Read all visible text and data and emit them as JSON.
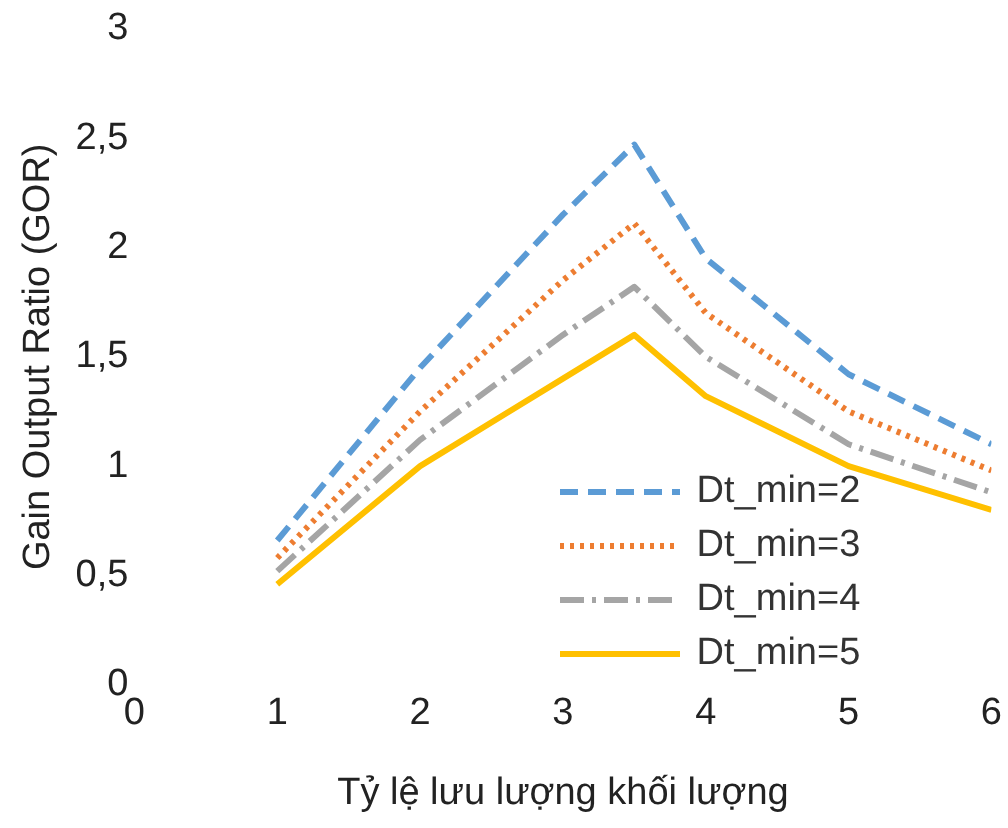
{
  "chart_data": {
    "type": "line",
    "xlabel": "Tỷ lệ lưu lượng khối lượng",
    "ylabel": "Gain Output Ratio (GOR)",
    "x": [
      1,
      2,
      3,
      3.5,
      4,
      5,
      6
    ],
    "xlim": [
      0,
      6
    ],
    "xticks": [
      0,
      1,
      2,
      3,
      4,
      5,
      6
    ],
    "ylim": [
      0,
      3
    ],
    "yticks": [
      0,
      {
        "value": 0.5,
        "label": "0,5"
      },
      1,
      {
        "value": 1.5,
        "label": "1,5"
      },
      2,
      {
        "value": 2.5,
        "label": "2,5"
      },
      3
    ],
    "grid": false,
    "legend": "bottom right",
    "marker": "none",
    "series": [
      {
        "name": "Dt_min=2",
        "color": "#5b9bd5",
        "line_style": "dashed",
        "values": [
          0.66,
          1.45,
          2.15,
          2.47,
          1.95,
          1.42,
          1.1
        ]
      },
      {
        "name": "Dt_min=3",
        "color": "#ed7d31",
        "line_style": "dotted",
        "values": [
          0.58,
          1.25,
          1.85,
          2.11,
          1.7,
          1.25,
          0.98
        ]
      },
      {
        "name": "Dt_min=4",
        "color": "#a5a5a5",
        "line_style": "dashdot",
        "values": [
          0.52,
          1.12,
          1.6,
          1.82,
          1.5,
          1.1,
          0.88
        ]
      },
      {
        "name": "Dt_min=5",
        "color": "#ffc000",
        "line_style": "solid",
        "values": [
          0.46,
          1.0,
          1.4,
          1.6,
          1.32,
          1.0,
          0.8
        ]
      }
    ]
  }
}
